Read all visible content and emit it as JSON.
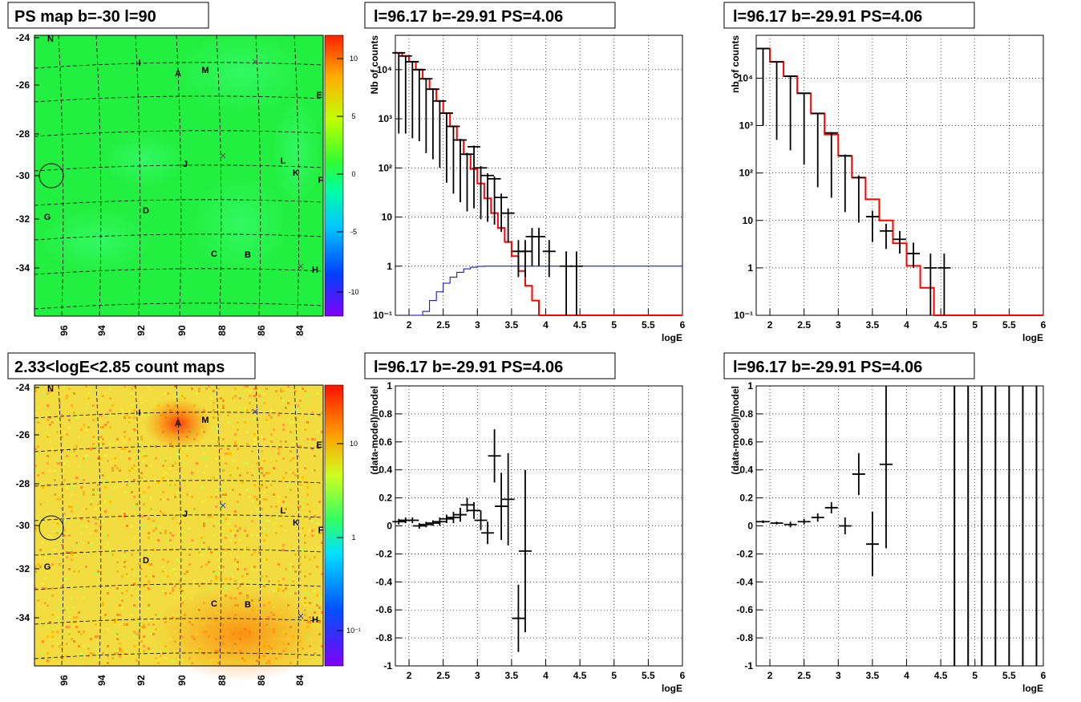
{
  "colors": {
    "model": "#ff0000",
    "data": "#000000",
    "bkg": "#0000cc",
    "grid": "#000000"
  },
  "panels": {
    "ps_map": {
      "title": "PS map b=-30 l=90"
    },
    "count_map": {
      "title": "2.33<logE<2.85 count maps"
    },
    "spec_left": {
      "title": "l=96.17 b=-29.91 PS=4.06"
    },
    "spec_right": {
      "title": "l=96.17 b=-29.91 PS=4.06"
    },
    "resid_left": {
      "title": "l=96.17 b=-29.91 PS=4.06"
    },
    "resid_right": {
      "title": "l=96.17 b=-29.91 PS=4.06"
    }
  },
  "map_axes": {
    "y_ticks": [
      "-24",
      "-26",
      "-28",
      "-30",
      "-32",
      "-34"
    ],
    "x_ticks": [
      "96",
      "94",
      "92",
      "90",
      "88",
      "86",
      "84"
    ]
  },
  "sources": [
    "N",
    "I",
    "A",
    "M",
    "E",
    "L",
    "J",
    "K",
    "F",
    "G",
    "D",
    "C",
    "B",
    "H"
  ],
  "colorbars": {
    "ps_map": [
      "10",
      "5",
      "0",
      "-5",
      "-10"
    ],
    "count_map": [
      "10",
      "1",
      "10⁻¹"
    ]
  },
  "chart_data": [
    {
      "type": "line",
      "title": "l=96.17 b=-29.91 PS=4.06",
      "xlabel": "logE",
      "ylabel": "Nb of counts",
      "xlim": [
        1.8,
        6
      ],
      "ylim": [
        0.1,
        50000
      ],
      "yscale": "log",
      "x_ticks": [
        "2",
        "2.5",
        "3",
        "3.5",
        "4",
        "4.5",
        "5",
        "5.5",
        "6"
      ],
      "y_ticks": [
        "10⁻¹",
        "1",
        "10",
        "10²",
        "10³",
        "10⁴"
      ],
      "grid": true,
      "series": [
        {
          "kind": "model_step",
          "bin_edges": [
            1.8,
            1.9,
            2.0,
            2.1,
            2.2,
            2.3,
            2.4,
            2.5,
            2.6,
            2.7,
            2.8,
            2.9,
            3.0,
            3.1,
            3.2,
            3.3,
            3.4,
            3.5,
            3.6,
            3.7,
            3.8,
            3.9,
            4.0,
            4.1,
            4.2,
            4.3,
            6.0
          ],
          "values": [
            22000,
            19000,
            14500,
            10000,
            6500,
            4000,
            2300,
            1300,
            700,
            370,
            190,
            95,
            48,
            24,
            12,
            6,
            3.1,
            1.6,
            0.8,
            0.4,
            0.2,
            0.1,
            0.05,
            0.03,
            0.1,
            0.1
          ]
        },
        {
          "kind": "background_step",
          "bin_edges": [
            2.0,
            2.1,
            2.2,
            2.3,
            2.4,
            2.5,
            2.6,
            2.7,
            2.8,
            2.9,
            3.0,
            3.1,
            6.0
          ],
          "values": [
            0.05,
            0.08,
            0.12,
            0.2,
            0.3,
            0.45,
            0.6,
            0.75,
            0.88,
            0.95,
            0.99,
            1.0
          ]
        },
        {
          "kind": "data_points",
          "x": [
            1.85,
            1.95,
            2.05,
            2.15,
            2.25,
            2.35,
            2.45,
            2.55,
            2.65,
            2.75,
            2.85,
            2.95,
            3.05,
            3.15,
            3.25,
            3.35,
            3.45,
            3.6,
            3.7,
            3.8,
            3.9,
            4.05,
            4.3,
            4.45
          ],
          "y": [
            22000,
            19000,
            14500,
            10000,
            6500,
            4000,
            2300,
            1300,
            700,
            370,
            190,
            270,
            100,
            70,
            60,
            25,
            12,
            2,
            2,
            4,
            4,
            2,
            1,
            1
          ],
          "yerr_lo": [
            21500,
            18500,
            14100,
            9650,
            6300,
            3850,
            2200,
            1250,
            670,
            350,
            177,
            255,
            91,
            62,
            53,
            20,
            9,
            1.4,
            1.4,
            3,
            3,
            1.4,
            0.99,
            0.99
          ],
          "yerr_hi": [
            22500,
            19500,
            14900,
            10350,
            6700,
            4150,
            2400,
            1350,
            730,
            390,
            203,
            285,
            109,
            78,
            67,
            30,
            15,
            3.4,
            3.4,
            6,
            6,
            3.4,
            2,
            2
          ]
        }
      ]
    },
    {
      "type": "line",
      "title": "l=96.17 b=-29.91 PS=4.06",
      "xlabel": "logE",
      "ylabel": "nb of counts",
      "xlim": [
        1.8,
        6
      ],
      "ylim": [
        0.1,
        80000
      ],
      "yscale": "log",
      "x_ticks": [
        "2",
        "2.5",
        "3",
        "3.5",
        "4",
        "4.5",
        "5",
        "5.5",
        "6"
      ],
      "y_ticks": [
        "10⁻¹",
        "1",
        "10",
        "10²",
        "10³",
        "10⁴"
      ],
      "grid": true,
      "series": [
        {
          "kind": "model_step",
          "bin_edges": [
            1.8,
            2.0,
            2.2,
            2.4,
            2.6,
            2.8,
            3.0,
            3.2,
            3.4,
            3.6,
            3.8,
            4.0,
            4.2,
            4.4,
            6.0
          ],
          "values": [
            42000,
            22000,
            11000,
            4800,
            1800,
            650,
            230,
            80,
            28,
            10,
            3.3,
            1.1,
            0.38,
            0.1
          ]
        },
        {
          "kind": "data_points",
          "x": [
            1.9,
            2.1,
            2.3,
            2.5,
            2.7,
            2.9,
            3.1,
            3.3,
            3.5,
            3.7,
            3.9,
            4.1,
            4.35,
            4.55
          ],
          "y": [
            42000,
            22000,
            11000,
            4800,
            1800,
            700,
            230,
            80,
            12,
            6,
            4,
            2,
            1,
            1
          ],
          "yerr_lo": [
            41000,
            21500,
            10700,
            4650,
            1750,
            670,
            215,
            71,
            8.5,
            3.5,
            2,
            0.99,
            0.99,
            0.99
          ],
          "yerr_hi": [
            43000,
            22500,
            11300,
            4950,
            1850,
            730,
            245,
            89,
            16,
            8.5,
            6,
            3.4,
            2,
            2
          ]
        }
      ]
    },
    {
      "type": "scatter",
      "title": "l=96.17 b=-29.91 PS=4.06",
      "xlabel": "logE",
      "ylabel": "(data-model)/model",
      "xlim": [
        1.8,
        6
      ],
      "ylim": [
        -1,
        1
      ],
      "x_ticks": [
        "2",
        "2.5",
        "3",
        "3.5",
        "4",
        "4.5",
        "5",
        "5.5",
        "6"
      ],
      "y_ticks": [
        "-1",
        "-0.8",
        "-0.6",
        "-0.4",
        "-0.2",
        "0",
        "0.2",
        "0.4",
        "0.6",
        "0.8",
        "1"
      ],
      "grid": true,
      "series": [
        {
          "kind": "data_points",
          "x": [
            1.85,
            1.95,
            2.05,
            2.15,
            2.25,
            2.35,
            2.45,
            2.55,
            2.65,
            2.75,
            2.85,
            2.95,
            3.05,
            3.15,
            3.25,
            3.35,
            3.45,
            3.6,
            3.7
          ],
          "y": [
            0.03,
            0.04,
            0.04,
            0.0,
            0.01,
            0.02,
            0.03,
            0.05,
            0.06,
            0.08,
            0.15,
            0.11,
            0.04,
            -0.05,
            0.5,
            0.14,
            0.19,
            -0.66,
            -0.18
          ],
          "yerr": [
            0.02,
            0.02,
            0.02,
            0.02,
            0.02,
            0.02,
            0.03,
            0.03,
            0.04,
            0.05,
            0.05,
            0.06,
            0.07,
            0.08,
            0.19,
            0.24,
            0.33,
            0.24,
            0.58
          ]
        }
      ]
    },
    {
      "type": "scatter",
      "title": "l=96.17 b=-29.91 PS=4.06",
      "xlabel": "logE",
      "ylabel": "(data-model)/model",
      "xlim": [
        1.8,
        6
      ],
      "ylim": [
        -1,
        1
      ],
      "x_ticks": [
        "2",
        "2.5",
        "3",
        "3.5",
        "4",
        "4.5",
        "5",
        "5.5",
        "6"
      ],
      "y_ticks": [
        "-1",
        "-0.8",
        "-0.6",
        "-0.4",
        "-0.2",
        "0",
        "0.2",
        "0.4",
        "0.6",
        "0.8",
        "1"
      ],
      "grid": true,
      "series": [
        {
          "kind": "data_points",
          "x": [
            1.9,
            2.1,
            2.3,
            2.5,
            2.7,
            2.9,
            3.1,
            3.3,
            3.5,
            3.7
          ],
          "y": [
            0.03,
            0.02,
            0.01,
            0.03,
            0.06,
            0.13,
            0.0,
            0.37,
            -0.13,
            0.44
          ],
          "yerr": [
            0.01,
            0.01,
            0.02,
            0.02,
            0.03,
            0.04,
            0.06,
            0.15,
            0.23,
            0.6
          ]
        },
        {
          "kind": "vertical_lines",
          "x": [
            4.7,
            4.9,
            5.1,
            5.3,
            5.5,
            5.7,
            5.9
          ]
        }
      ]
    }
  ]
}
